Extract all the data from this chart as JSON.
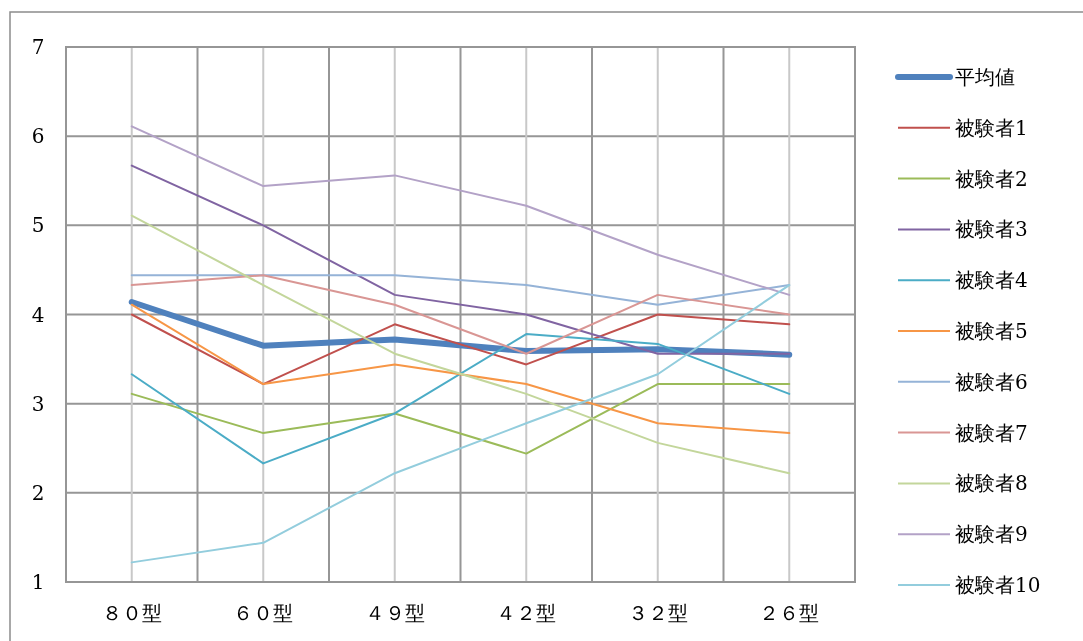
{
  "chart_data": {
    "type": "line",
    "categories": [
      "８０型",
      "６０型",
      "４９型",
      "４２型",
      "３２型",
      "２６型"
    ],
    "ylim": [
      1,
      7
    ],
    "yticks": [
      1,
      2,
      3,
      4,
      5,
      6,
      7
    ],
    "grid": true,
    "legend": "right",
    "line_style": "solid",
    "series": [
      {
        "name": "平均値",
        "color": "#4f81bd",
        "values": [
          4.14,
          3.65,
          3.72,
          3.59,
          3.61,
          3.55
        ]
      },
      {
        "name": "被験者1",
        "color": "#c0504d",
        "values": [
          4.0,
          3.22,
          3.89,
          3.44,
          4.0,
          3.89
        ]
      },
      {
        "name": "被験者2",
        "color": "#9bbb59",
        "values": [
          3.11,
          2.67,
          2.89,
          2.44,
          3.22,
          3.22
        ]
      },
      {
        "name": "被験者3",
        "color": "#8064a2",
        "values": [
          5.67,
          5.0,
          4.22,
          4.0,
          3.56,
          3.56
        ]
      },
      {
        "name": "被験者4",
        "color": "#4bacc6",
        "values": [
          3.33,
          2.33,
          2.89,
          3.78,
          3.67,
          3.11
        ]
      },
      {
        "name": "被験者5",
        "color": "#f79646",
        "values": [
          4.11,
          3.22,
          3.44,
          3.22,
          2.78,
          2.67
        ]
      },
      {
        "name": "被験者6",
        "color": "#95b3d7",
        "values": [
          4.44,
          4.44,
          4.44,
          4.33,
          4.11,
          4.33
        ]
      },
      {
        "name": "被験者7",
        "color": "#d99694",
        "values": [
          4.33,
          4.44,
          4.11,
          3.56,
          4.22,
          4.0
        ]
      },
      {
        "name": "被験者8",
        "color": "#c3d69b",
        "values": [
          5.11,
          4.33,
          3.56,
          3.11,
          2.56,
          2.22
        ]
      },
      {
        "name": "被験者9",
        "color": "#b3a2c7",
        "values": [
          6.11,
          5.44,
          5.56,
          5.22,
          4.67,
          4.22
        ]
      },
      {
        "name": "被験者10",
        "color": "#93cddd",
        "values": [
          1.22,
          1.44,
          2.22,
          2.78,
          3.33,
          4.33
        ]
      }
    ]
  }
}
